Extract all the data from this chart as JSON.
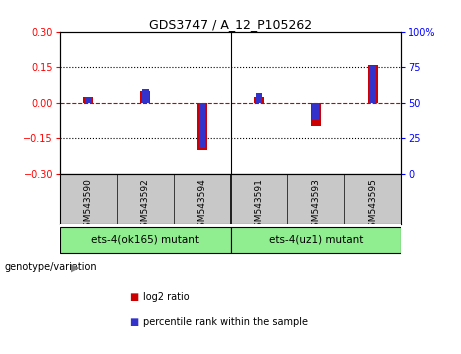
{
  "title": "GDS3747 / A_12_P105262",
  "samples": [
    "GSM543590",
    "GSM543592",
    "GSM543594",
    "GSM543591",
    "GSM543593",
    "GSM543595"
  ],
  "log2_ratios": [
    0.025,
    0.05,
    -0.2,
    0.025,
    -0.1,
    0.16
  ],
  "percentile_ranks": [
    54,
    60,
    18,
    57,
    38,
    76
  ],
  "ylim_left": [
    -0.3,
    0.3
  ],
  "ylim_right": [
    0,
    100
  ],
  "yticks_left": [
    -0.3,
    -0.15,
    0,
    0.15,
    0.3
  ],
  "yticks_right": [
    0,
    25,
    50,
    75,
    100
  ],
  "groups": [
    {
      "label": "ets-4(ok165) mutant",
      "color": "#90EE90"
    },
    {
      "label": "ets-4(uz1) mutant",
      "color": "#90EE90"
    }
  ],
  "bar_color_red": "#CC0000",
  "bar_color_blue": "#3333CC",
  "zero_line_color": "#CC0000",
  "bg_color": "white",
  "plot_bg": "white",
  "label_bg": "#C8C8C8",
  "group_bg": "#90EE90",
  "legend_red_label": "log2 ratio",
  "legend_blue_label": "percentile rank within the sample",
  "genotype_label": "genotype/variation",
  "red_bar_width": 0.18,
  "blue_bar_width": 0.12
}
